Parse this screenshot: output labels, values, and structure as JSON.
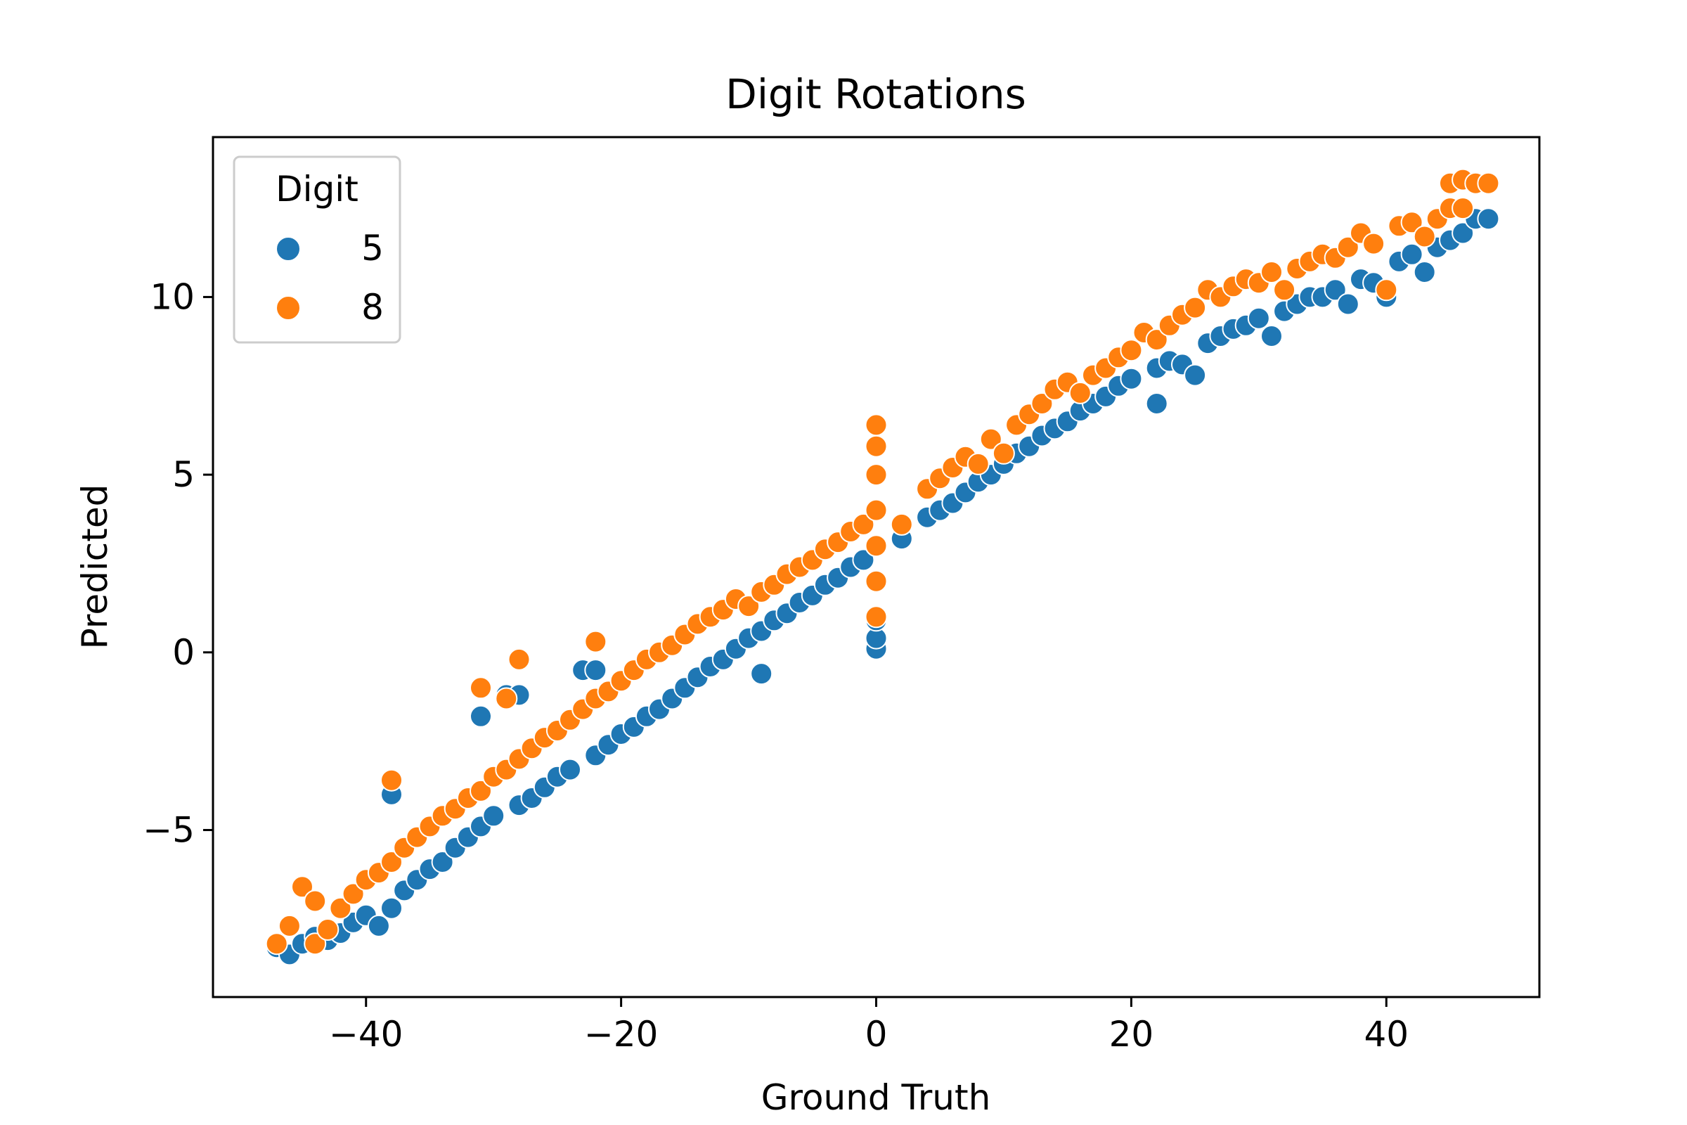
{
  "chart_data": {
    "type": "scatter",
    "title": "Digit Rotations",
    "xlabel": "Ground Truth",
    "ylabel": "Predicted",
    "xlim": [
      -52,
      52
    ],
    "ylim": [
      -9.7,
      14.5
    ],
    "xticks": [
      -40,
      -20,
      0,
      20,
      40
    ],
    "xtick_labels": [
      "−40",
      "−20",
      "0",
      "20",
      "40"
    ],
    "yticks": [
      -5,
      0,
      5,
      10
    ],
    "ytick_labels": [
      "−5",
      "0",
      "5",
      "10"
    ],
    "grid": false,
    "legend": {
      "title": "Digit",
      "position": "top-left",
      "entries": [
        {
          "label": "5",
          "color": "#1f77b4"
        },
        {
          "label": "8",
          "color": "#ff7f0e"
        }
      ]
    },
    "series": [
      {
        "name": "5",
        "color": "#1f77b4",
        "points": [
          [
            -47,
            -8.3
          ],
          [
            -46,
            -8.5
          ],
          [
            -45,
            -8.2
          ],
          [
            -44,
            -8.0
          ],
          [
            -43,
            -8.1
          ],
          [
            -42,
            -7.9
          ],
          [
            -41,
            -7.6
          ],
          [
            -40,
            -7.4
          ],
          [
            -39,
            -7.7
          ],
          [
            -38,
            -7.2
          ],
          [
            -38,
            -4.0
          ],
          [
            -37,
            -6.7
          ],
          [
            -36,
            -6.4
          ],
          [
            -35,
            -6.1
          ],
          [
            -34,
            -5.9
          ],
          [
            -33,
            -5.5
          ],
          [
            -32,
            -5.2
          ],
          [
            -31,
            -1.8
          ],
          [
            -31,
            -4.9
          ],
          [
            -30,
            -4.6
          ],
          [
            -29,
            -1.2
          ],
          [
            -28,
            -1.2
          ],
          [
            -28,
            -4.3
          ],
          [
            -27,
            -4.1
          ],
          [
            -26,
            -3.8
          ],
          [
            -25,
            -3.5
          ],
          [
            -24,
            -3.3
          ],
          [
            -23,
            -0.5
          ],
          [
            -22,
            -0.5
          ],
          [
            -22,
            -2.9
          ],
          [
            -21,
            -2.6
          ],
          [
            -20,
            -2.3
          ],
          [
            -19,
            -2.1
          ],
          [
            -18,
            -1.8
          ],
          [
            -17,
            -1.6
          ],
          [
            -16,
            -1.3
          ],
          [
            -15,
            -1.0
          ],
          [
            -14,
            -0.7
          ],
          [
            -13,
            -0.4
          ],
          [
            -12,
            -0.2
          ],
          [
            -11,
            0.1
          ],
          [
            -10,
            0.4
          ],
          [
            -9,
            -0.6
          ],
          [
            -9,
            0.6
          ],
          [
            -8,
            0.9
          ],
          [
            -7,
            1.1
          ],
          [
            -6,
            1.4
          ],
          [
            -5,
            1.6
          ],
          [
            -4,
            1.9
          ],
          [
            -3,
            2.1
          ],
          [
            -2,
            2.4
          ],
          [
            -1,
            2.6
          ],
          [
            0,
            0.1
          ],
          [
            0,
            0.4
          ],
          [
            0,
            0.9
          ],
          [
            0,
            2.0
          ],
          [
            0,
            3.0
          ],
          [
            2,
            3.2
          ],
          [
            4,
            3.8
          ],
          [
            5,
            4.0
          ],
          [
            6,
            4.2
          ],
          [
            7,
            4.5
          ],
          [
            8,
            4.8
          ],
          [
            9,
            5.0
          ],
          [
            10,
            5.3
          ],
          [
            11,
            5.6
          ],
          [
            12,
            5.8
          ],
          [
            13,
            6.1
          ],
          [
            14,
            6.3
          ],
          [
            15,
            6.5
          ],
          [
            16,
            6.8
          ],
          [
            17,
            7.0
          ],
          [
            18,
            7.2
          ],
          [
            19,
            7.5
          ],
          [
            20,
            7.7
          ],
          [
            22,
            7.0
          ],
          [
            22,
            8.0
          ],
          [
            23,
            8.2
          ],
          [
            24,
            8.1
          ],
          [
            25,
            7.8
          ],
          [
            26,
            8.7
          ],
          [
            27,
            8.9
          ],
          [
            28,
            9.1
          ],
          [
            29,
            9.2
          ],
          [
            30,
            9.4
          ],
          [
            31,
            8.9
          ],
          [
            32,
            9.6
          ],
          [
            33,
            9.8
          ],
          [
            34,
            10.0
          ],
          [
            35,
            10.0
          ],
          [
            36,
            10.2
          ],
          [
            37,
            9.8
          ],
          [
            38,
            10.5
          ],
          [
            39,
            10.4
          ],
          [
            40,
            10.0
          ],
          [
            41,
            11.0
          ],
          [
            42,
            11.2
          ],
          [
            43,
            10.7
          ],
          [
            44,
            11.4
          ],
          [
            45,
            11.6
          ],
          [
            46,
            11.8
          ],
          [
            47,
            12.2
          ],
          [
            48,
            12.2
          ]
        ]
      },
      {
        "name": "8",
        "color": "#ff7f0e",
        "points": [
          [
            -47,
            -8.2
          ],
          [
            -46,
            -7.7
          ],
          [
            -45,
            -6.6
          ],
          [
            -44,
            -7.0
          ],
          [
            -44,
            -8.2
          ],
          [
            -43,
            -7.8
          ],
          [
            -42,
            -7.2
          ],
          [
            -41,
            -6.8
          ],
          [
            -40,
            -6.4
          ],
          [
            -39,
            -6.2
          ],
          [
            -38,
            -3.6
          ],
          [
            -38,
            -5.9
          ],
          [
            -37,
            -5.5
          ],
          [
            -36,
            -5.2
          ],
          [
            -35,
            -4.9
          ],
          [
            -34,
            -4.6
          ],
          [
            -33,
            -4.4
          ],
          [
            -32,
            -4.1
          ],
          [
            -31,
            -1.0
          ],
          [
            -31,
            -3.9
          ],
          [
            -30,
            -3.5
          ],
          [
            -29,
            -1.3
          ],
          [
            -29,
            -3.3
          ],
          [
            -28,
            -0.2
          ],
          [
            -28,
            -3.0
          ],
          [
            -27,
            -2.7
          ],
          [
            -26,
            -2.4
          ],
          [
            -25,
            -2.2
          ],
          [
            -24,
            -1.9
          ],
          [
            -23,
            -1.6
          ],
          [
            -22,
            0.3
          ],
          [
            -22,
            -1.3
          ],
          [
            -21,
            -1.1
          ],
          [
            -20,
            -0.8
          ],
          [
            -19,
            -0.5
          ],
          [
            -18,
            -0.2
          ],
          [
            -17,
            0.0
          ],
          [
            -16,
            0.2
          ],
          [
            -15,
            0.5
          ],
          [
            -14,
            0.8
          ],
          [
            -13,
            1.0
          ],
          [
            -12,
            1.2
          ],
          [
            -11,
            1.5
          ],
          [
            -10,
            1.3
          ],
          [
            -9,
            1.7
          ],
          [
            -8,
            1.9
          ],
          [
            -7,
            2.2
          ],
          [
            -6,
            2.4
          ],
          [
            -5,
            2.6
          ],
          [
            -4,
            2.9
          ],
          [
            -3,
            3.1
          ],
          [
            -2,
            3.4
          ],
          [
            -1,
            3.6
          ],
          [
            0,
            1.0
          ],
          [
            0,
            2.0
          ],
          [
            0,
            3.0
          ],
          [
            0,
            4.0
          ],
          [
            0,
            5.0
          ],
          [
            0,
            5.8
          ],
          [
            0,
            6.4
          ],
          [
            2,
            3.6
          ],
          [
            4,
            4.6
          ],
          [
            5,
            4.9
          ],
          [
            6,
            5.2
          ],
          [
            7,
            5.5
          ],
          [
            8,
            5.3
          ],
          [
            9,
            6.0
          ],
          [
            10,
            5.6
          ],
          [
            11,
            6.4
          ],
          [
            12,
            6.7
          ],
          [
            13,
            7.0
          ],
          [
            14,
            7.4
          ],
          [
            15,
            7.6
          ],
          [
            16,
            7.3
          ],
          [
            17,
            7.8
          ],
          [
            18,
            8.0
          ],
          [
            19,
            8.3
          ],
          [
            20,
            8.5
          ],
          [
            21,
            9.0
          ],
          [
            22,
            8.8
          ],
          [
            23,
            9.2
          ],
          [
            24,
            9.5
          ],
          [
            25,
            9.7
          ],
          [
            26,
            10.2
          ],
          [
            27,
            10.0
          ],
          [
            28,
            10.3
          ],
          [
            29,
            10.5
          ],
          [
            30,
            10.4
          ],
          [
            31,
            10.7
          ],
          [
            32,
            10.2
          ],
          [
            33,
            10.8
          ],
          [
            34,
            11.0
          ],
          [
            35,
            11.2
          ],
          [
            36,
            11.1
          ],
          [
            37,
            11.4
          ],
          [
            38,
            11.8
          ],
          [
            39,
            11.5
          ],
          [
            40,
            10.2
          ],
          [
            41,
            12.0
          ],
          [
            42,
            12.1
          ],
          [
            43,
            11.7
          ],
          [
            44,
            12.2
          ],
          [
            45,
            12.5
          ],
          [
            45,
            13.2
          ],
          [
            46,
            13.3
          ],
          [
            46,
            12.5
          ],
          [
            47,
            13.2
          ],
          [
            48,
            13.2
          ]
        ]
      }
    ]
  }
}
